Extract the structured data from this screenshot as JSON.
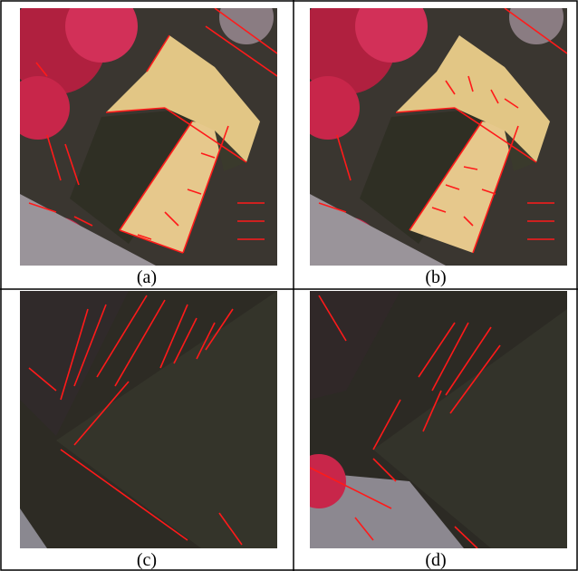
{
  "panels": [
    {
      "id": "a",
      "label": "(a)"
    },
    {
      "id": "b",
      "label": "(b)"
    },
    {
      "id": "c",
      "label": "(c)"
    },
    {
      "id": "d",
      "label": "(d)"
    }
  ],
  "colors": {
    "detected_line": "#ff1a1a",
    "foliage": "#c8264a",
    "roof_light": "#e6c88c",
    "roof_dark": "#2f2f24",
    "grid_border": "#000000"
  }
}
